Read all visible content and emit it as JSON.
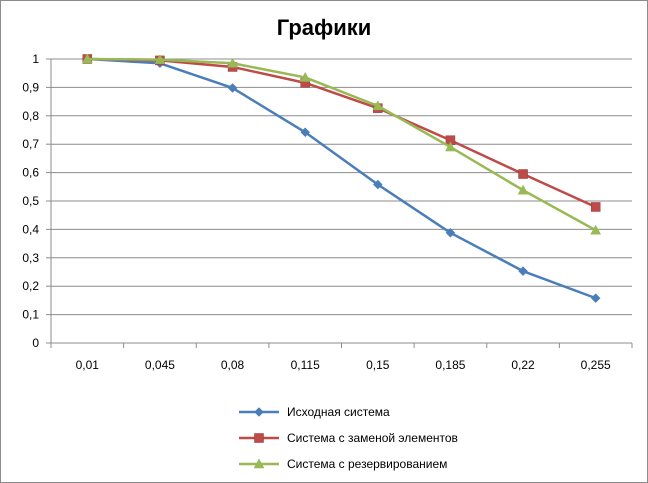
{
  "chart_data": {
    "type": "line",
    "title": "Графики",
    "xlabel": "",
    "ylabel": "",
    "categories": [
      "0,01",
      "0,045",
      "0,08",
      "0,115",
      "0,15",
      "0,185",
      "0,22",
      "0,255"
    ],
    "y_ticks": [
      "0",
      "0,1",
      "0,2",
      "0,3",
      "0,4",
      "0,5",
      "0,6",
      "0,7",
      "0,8",
      "0,9",
      "1"
    ],
    "ylim": [
      0,
      1
    ],
    "grid": true,
    "legend_position": "bottom",
    "series": [
      {
        "name": "Исходная система",
        "color": "#4a7ebb",
        "marker": "diamond",
        "values": [
          1.0,
          0.985,
          0.898,
          0.742,
          0.558,
          0.388,
          0.253,
          0.158
        ]
      },
      {
        "name": "Система с заменой элементов",
        "color": "#be4b48",
        "marker": "square",
        "values": [
          1.0,
          0.995,
          0.972,
          0.916,
          0.827,
          0.714,
          0.595,
          0.479
        ]
      },
      {
        "name": "Система с резервированием",
        "color": "#98b954",
        "marker": "triangle",
        "values": [
          1.0,
          0.998,
          0.985,
          0.935,
          0.835,
          0.69,
          0.538,
          0.397
        ]
      }
    ]
  }
}
